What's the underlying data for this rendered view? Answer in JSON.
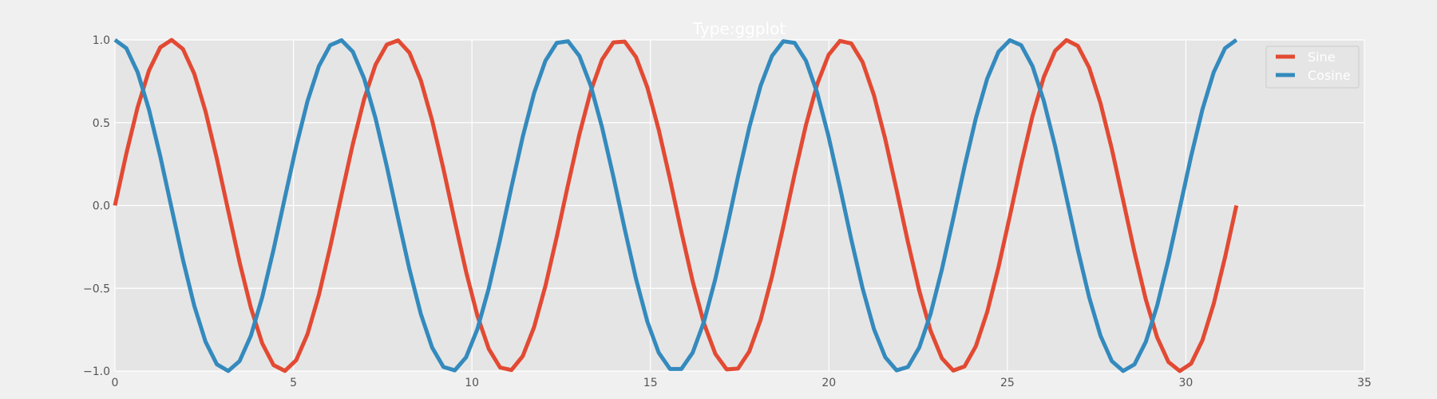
{
  "chart_data": {
    "type": "line",
    "title": "Type:ggplot",
    "xlabel": "",
    "ylabel": "",
    "xlim": [
      0,
      35
    ],
    "ylim": [
      -1.0,
      1.0
    ],
    "xticks": [
      0,
      5,
      10,
      15,
      20,
      25,
      30,
      35
    ],
    "yticks": [
      -1.0,
      -0.5,
      0.0,
      0.5,
      1.0
    ],
    "xtick_labels": [
      "0",
      "5",
      "10",
      "15",
      "20",
      "25",
      "30",
      "35"
    ],
    "ytick_labels": [
      "−1.0",
      "−0.5",
      "0.0",
      "0.5",
      "1.0"
    ],
    "grid": true,
    "legend_position": "top-right",
    "x_range": [
      0,
      31.4159
    ],
    "num_points": 100,
    "series": [
      {
        "name": "Sine",
        "function": "sin",
        "color": "#E24A33"
      },
      {
        "name": "Cosine",
        "function": "cos",
        "color": "#348ABD"
      }
    ]
  },
  "colors": {
    "figure_background": "#f0f0f0",
    "axes_background": "#e5e5e5",
    "grid": "#ffffff",
    "tick_text": "#555555",
    "title_text": "#ffffff"
  }
}
